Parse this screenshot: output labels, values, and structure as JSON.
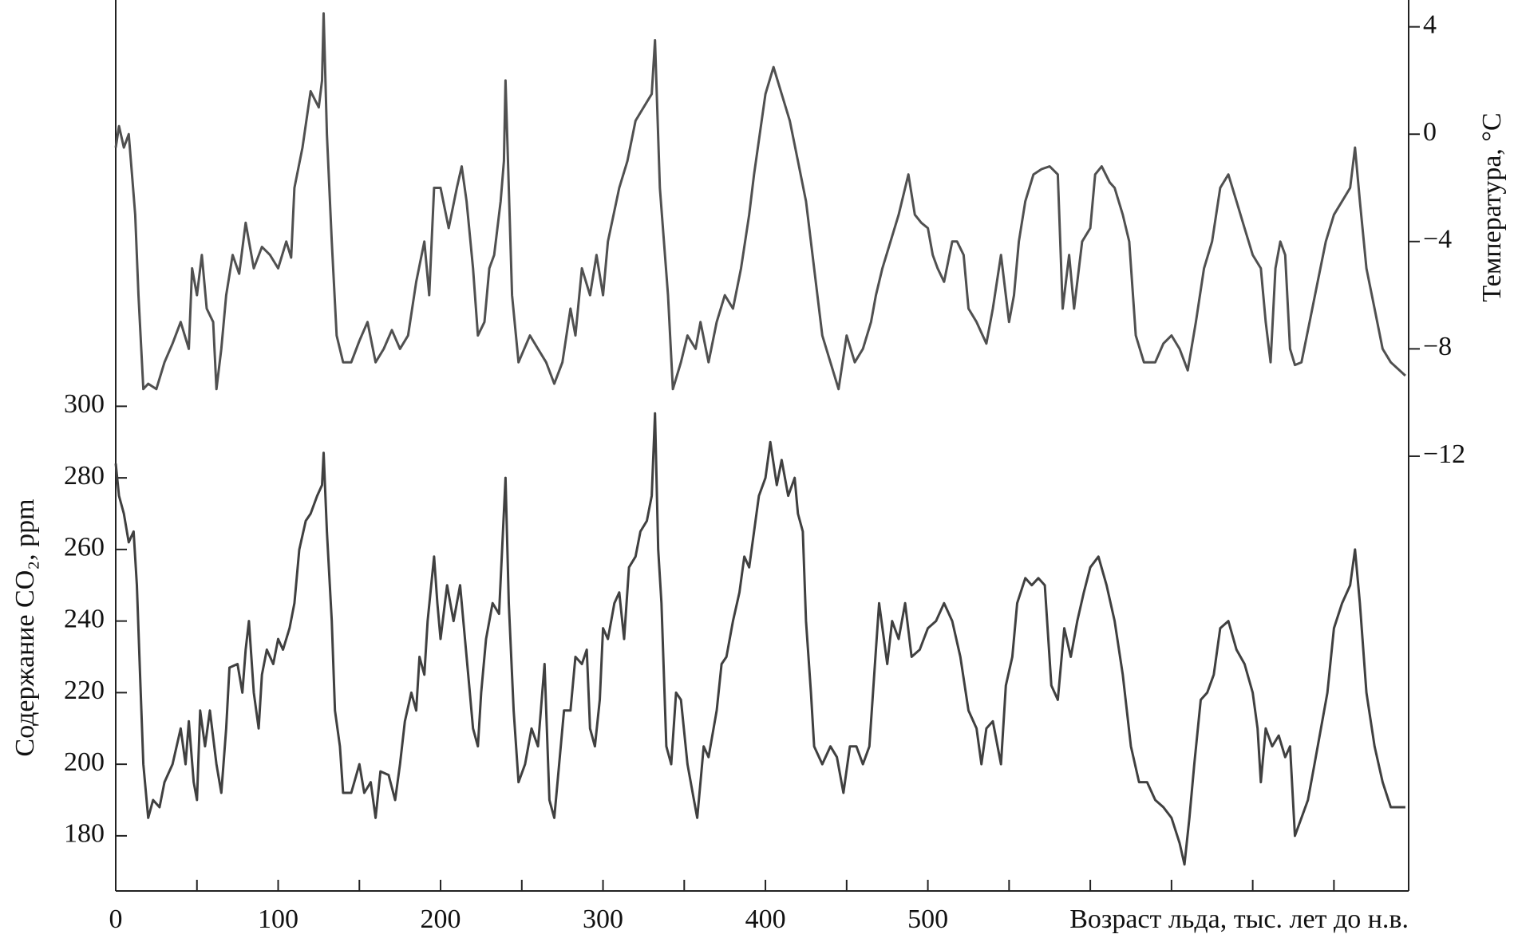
{
  "chart_data": {
    "type": "line",
    "xlabel": "Возраст льда, тыс. лет до н.в.",
    "ylabel": "Содержание CO₂, ppm",
    "y2label": "Температура, °C",
    "xlim": [
      0,
      796
    ],
    "xticks": [
      0,
      100,
      200,
      300,
      400,
      500
    ],
    "xminorticks": [
      50,
      150,
      250,
      350,
      450,
      550,
      600,
      650,
      700,
      750
    ],
    "ylim": [
      164.6,
      413.5
    ],
    "yticks": [
      180,
      200,
      220,
      240,
      260,
      280,
      300
    ],
    "y2lim": [
      -28.2,
      5.0
    ],
    "y2ticks": [
      4,
      0,
      {
        "value": -4,
        "label": "−4"
      },
      {
        "value": -8,
        "label": "−8"
      },
      {
        "value": -12,
        "label": "−12"
      }
    ],
    "series": [
      {
        "name": "Температура",
        "axis": "y2",
        "color": "#505050",
        "x": [
          0,
          2,
          5,
          8,
          10,
          12,
          14,
          17,
          20,
          25,
          30,
          35,
          40,
          45,
          47,
          50,
          53,
          56,
          60,
          62,
          65,
          68,
          72,
          76,
          80,
          85,
          90,
          95,
          100,
          105,
          108,
          110,
          115,
          120,
          125,
          127,
          128,
          130,
          133,
          136,
          140,
          145,
          150,
          155,
          160,
          165,
          170,
          175,
          180,
          185,
          190,
          193,
          196,
          200,
          205,
          210,
          213,
          216,
          220,
          223,
          227,
          230,
          233,
          237,
          239,
          240,
          242,
          244,
          248,
          255,
          260,
          265,
          270,
          275,
          280,
          283,
          287,
          292,
          296,
          300,
          303,
          310,
          315,
          320,
          325,
          330,
          332,
          335,
          340,
          343,
          348,
          352,
          357,
          360,
          365,
          370,
          375,
          380,
          385,
          390,
          393,
          400,
          405,
          410,
          415,
          420,
          425,
          430,
          435,
          440,
          445,
          450,
          455,
          460,
          465,
          468,
          472,
          477,
          482,
          488,
          492,
          496,
          500,
          503,
          506,
          510,
          515,
          518,
          522,
          525,
          530,
          536,
          540,
          545,
          550,
          553,
          556,
          560,
          565,
          570,
          575,
          580,
          583,
          587,
          590,
          595,
          600,
          603,
          607,
          612,
          615,
          620,
          624,
          628,
          633,
          640,
          645,
          650,
          655,
          660,
          665,
          670,
          675,
          680,
          685,
          690,
          695,
          700,
          705,
          708,
          711,
          714,
          717,
          720,
          723,
          726,
          730,
          735,
          740,
          745,
          750,
          755,
          760,
          763,
          766,
          770,
          775,
          780,
          785,
          794
        ],
        "values": [
          -0.5,
          0.3,
          -0.5,
          0,
          -1.5,
          -3,
          -6,
          -9.5,
          -9.3,
          -9.5,
          -8.5,
          -7.8,
          -7,
          -8,
          -5,
          -6,
          -4.5,
          -6.5,
          -7,
          -9.5,
          -8,
          -6,
          -4.5,
          -5.2,
          -3.3,
          -5,
          -4.2,
          -4.5,
          -5,
          -4,
          -4.6,
          -2,
          -0.5,
          1.6,
          1,
          2,
          4.5,
          0,
          -4,
          -7.5,
          -8.5,
          -8.5,
          -7.7,
          -7,
          -8.5,
          -8,
          -7.3,
          -8,
          -7.5,
          -5.5,
          -4,
          -6,
          -2,
          -2,
          -3.5,
          -2,
          -1.2,
          -2.5,
          -5,
          -7.5,
          -7,
          -5,
          -4.5,
          -2.5,
          -1,
          2,
          -2,
          -6,
          -8.5,
          -7.5,
          -8,
          -8.5,
          -9.3,
          -8.5,
          -6.5,
          -7.5,
          -5,
          -6,
          -4.5,
          -6,
          -4,
          -2,
          -1,
          0.5,
          1,
          1.5,
          3.5,
          -2,
          -6,
          -9.5,
          -8.5,
          -7.5,
          -8,
          -7,
          -8.5,
          -7,
          -6,
          -6.5,
          -5,
          -3,
          -1.5,
          1.5,
          2.5,
          1.5,
          0.5,
          -1,
          -2.5,
          -5,
          -7.5,
          -8.5,
          -9.5,
          -7.5,
          -8.5,
          -8,
          -7,
          -6,
          -5,
          -4,
          -3,
          -1.5,
          -3,
          -3.3,
          -3.5,
          -4.5,
          -5,
          -5.5,
          -4,
          -4,
          -4.5,
          -6.5,
          -7,
          -7.8,
          -6.5,
          -4.5,
          -7,
          -6,
          -4,
          -2.5,
          -1.5,
          -1.3,
          -1.2,
          -1.5,
          -6.5,
          -4.5,
          -6.5,
          -4,
          -3.5,
          -1.5,
          -1.2,
          -1.8,
          -2,
          -3,
          -4,
          -7.5,
          -8.5,
          -8.5,
          -7.8,
          -7.5,
          -8,
          -8.8,
          -7,
          -5,
          -4,
          -2,
          -1.5,
          -2.5,
          -3.5,
          -4.5,
          -5,
          -7,
          -8.5,
          -5,
          -4,
          -4.5,
          -8,
          -8.6,
          -8.5,
          -7,
          -5.5,
          -4,
          -3,
          -2.5,
          -2,
          -0.5,
          -2.5,
          -5,
          -6.5,
          -8,
          -8.5,
          -9
        ]
      },
      {
        "name": "CO₂",
        "axis": "y",
        "color": "#404040",
        "x": [
          0,
          2,
          5,
          8,
          11,
          13,
          15,
          17,
          20,
          23,
          27,
          30,
          35,
          40,
          43,
          45,
          48,
          50,
          52,
          55,
          58,
          62,
          65,
          68,
          70,
          75,
          78,
          80,
          82,
          85,
          88,
          90,
          93,
          97,
          100,
          103,
          107,
          110,
          113,
          117,
          120,
          124,
          127,
          128,
          130,
          133,
          135,
          138,
          140,
          145,
          150,
          153,
          157,
          160,
          163,
          168,
          172,
          175,
          178,
          182,
          185,
          187,
          190,
          192,
          196,
          198,
          200,
          204,
          208,
          212,
          215,
          218,
          220,
          223,
          225,
          228,
          232,
          236,
          240,
          242,
          245,
          248,
          252,
          256,
          260,
          264,
          267,
          270,
          273,
          276,
          280,
          283,
          287,
          290,
          292,
          295,
          298,
          300,
          303,
          307,
          310,
          313,
          316,
          320,
          323,
          327,
          330,
          332,
          334,
          336,
          339,
          342,
          345,
          348,
          352,
          356,
          358,
          360,
          362,
          365,
          370,
          373,
          376,
          380,
          384,
          387,
          390,
          393,
          396,
          400,
          403,
          407,
          410,
          414,
          418,
          420,
          423,
          425,
          428,
          430,
          435,
          440,
          444,
          448,
          452,
          456,
          460,
          464,
          468,
          470,
          475,
          478,
          482,
          486,
          490,
          495,
          500,
          505,
          510,
          515,
          520,
          525,
          530,
          533,
          536,
          540,
          545,
          548,
          552,
          555,
          560,
          564,
          568,
          572,
          576,
          580,
          584,
          588,
          592,
          596,
          600,
          605,
          610,
          615,
          620,
          625,
          630,
          635,
          640,
          645,
          650,
          655,
          658,
          661,
          664,
          668,
          672,
          676,
          680,
          685,
          690,
          695,
          700,
          703,
          705,
          708,
          712,
          716,
          720,
          723,
          726,
          730,
          734,
          738,
          742,
          746,
          750,
          755,
          760,
          763,
          766,
          770,
          775,
          780,
          785,
          794
        ],
        "values": [
          284,
          275,
          270,
          262,
          265,
          250,
          225,
          200,
          185,
          190,
          188,
          195,
          200,
          210,
          200,
          212,
          195,
          190,
          215,
          205,
          215,
          200,
          192,
          210,
          227,
          228,
          220,
          232,
          240,
          220,
          210,
          225,
          232,
          228,
          235,
          232,
          238,
          245,
          260,
          268,
          270,
          275,
          278,
          287,
          265,
          240,
          215,
          205,
          192,
          192,
          200,
          192,
          195,
          185,
          198,
          197,
          190,
          200,
          212,
          220,
          215,
          230,
          225,
          240,
          258,
          245,
          235,
          250,
          240,
          250,
          235,
          220,
          210,
          205,
          220,
          235,
          245,
          242,
          280,
          245,
          215,
          195,
          200,
          210,
          205,
          228,
          190,
          185,
          200,
          215,
          215,
          230,
          228,
          232,
          210,
          205,
          218,
          238,
          235,
          245,
          248,
          235,
          255,
          258,
          265,
          268,
          275,
          298,
          260,
          245,
          205,
          200,
          220,
          218,
          200,
          190,
          185,
          195,
          205,
          202,
          215,
          228,
          230,
          240,
          248,
          258,
          255,
          265,
          275,
          280,
          290,
          278,
          285,
          275,
          280,
          270,
          265,
          240,
          220,
          205,
          200,
          205,
          202,
          192,
          205,
          205,
          200,
          205,
          232,
          245,
          228,
          240,
          235,
          245,
          230,
          232,
          238,
          240,
          245,
          240,
          230,
          215,
          210,
          200,
          210,
          212,
          200,
          222,
          230,
          245,
          252,
          250,
          252,
          250,
          222,
          218,
          238,
          230,
          240,
          248,
          255,
          258,
          250,
          240,
          225,
          205,
          195,
          195,
          190,
          188,
          185,
          178,
          172,
          185,
          200,
          218,
          220,
          225,
          238,
          240,
          232,
          228,
          220,
          210,
          195,
          210,
          205,
          208,
          202,
          205,
          180,
          185,
          190,
          200,
          210,
          220,
          238,
          245,
          250,
          260,
          245,
          220,
          205,
          195,
          188,
          188
        ]
      }
    ]
  }
}
